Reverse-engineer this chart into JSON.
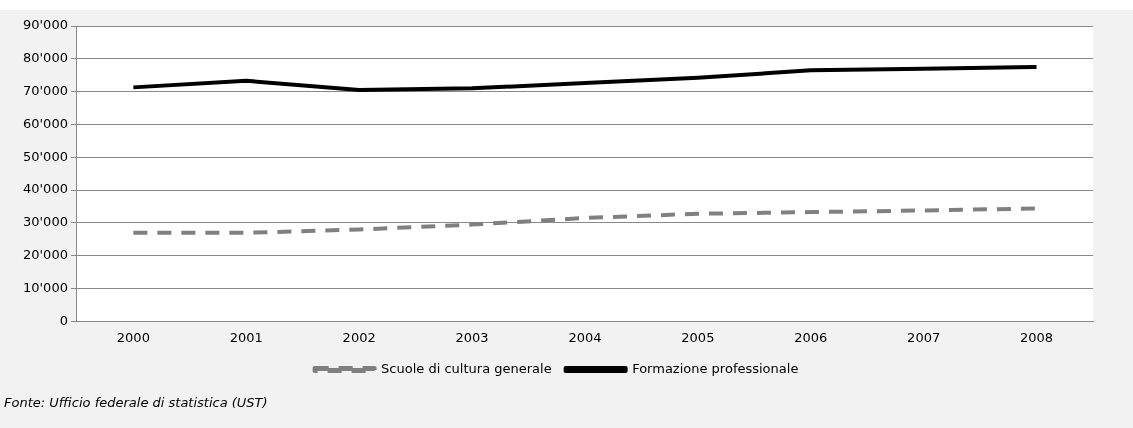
{
  "chart_data": {
    "type": "line",
    "categories": [
      "2000",
      "2001",
      "2002",
      "2003",
      "2004",
      "2005",
      "2006",
      "2007",
      "2008"
    ],
    "series": [
      {
        "name": "Scuole di cultura generale",
        "color": "#808080",
        "line_style": "dashed",
        "values": [
          27000,
          27000,
          28000,
          29500,
          31500,
          32800,
          33300,
          33800,
          34400
        ]
      },
      {
        "name": "Formazione professionale",
        "color": "#000000",
        "line_style": "solid",
        "values": [
          71300,
          73300,
          70500,
          71000,
          72600,
          74200,
          76500,
          77000,
          77500
        ]
      }
    ],
    "ylim": [
      0,
      90000
    ],
    "yticks": [
      {
        "value": 0,
        "label": "0"
      },
      {
        "value": 10000,
        "label": "10'000"
      },
      {
        "value": 20000,
        "label": "20'000"
      },
      {
        "value": 30000,
        "label": "30'000"
      },
      {
        "value": 40000,
        "label": "40'000"
      },
      {
        "value": 50000,
        "label": "50'000"
      },
      {
        "value": 60000,
        "label": "60'000"
      },
      {
        "value": 70000,
        "label": "70'000"
      },
      {
        "value": 80000,
        "label": "80'000"
      },
      {
        "value": 90000,
        "label": "90'000"
      }
    ],
    "grid": "y",
    "legend": "bottom",
    "marker": "none",
    "annotations": [
      "Fonte: Ufficio federale di statistica (UST)"
    ]
  }
}
